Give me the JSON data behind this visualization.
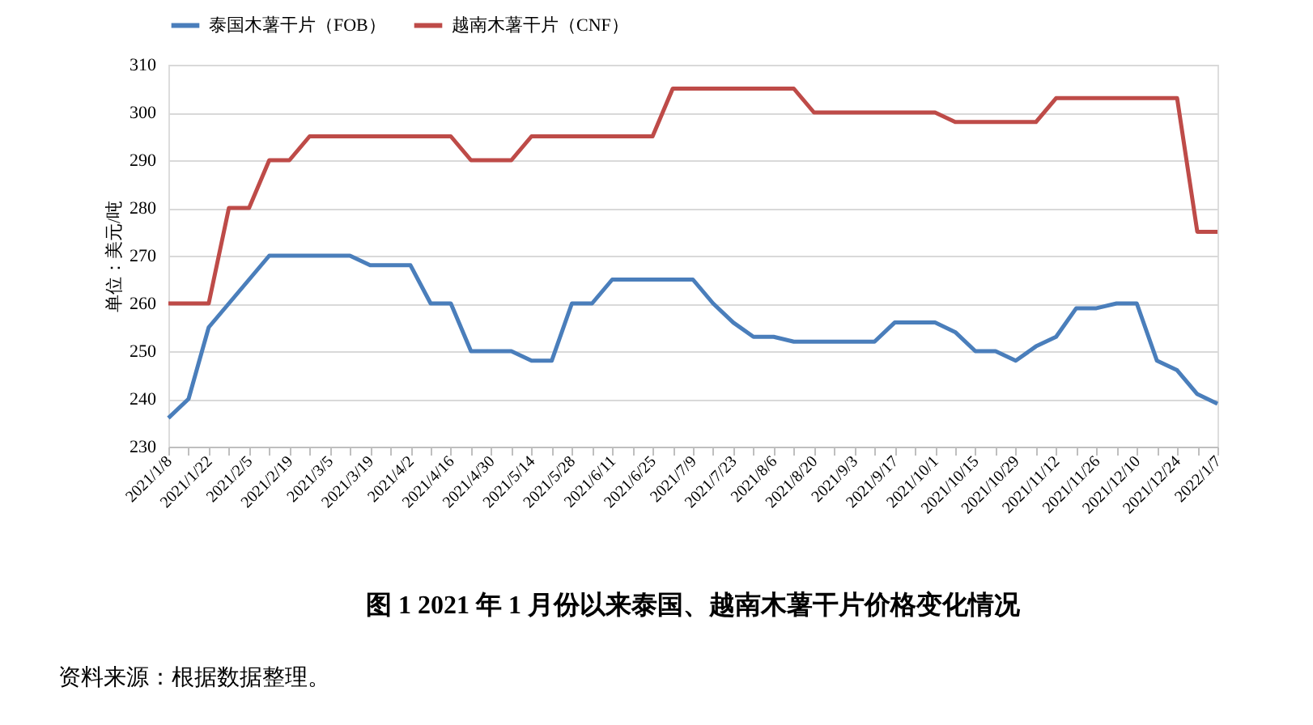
{
  "chart_data": {
    "type": "line",
    "title": "图 1   2021 年 1 月份以来泰国、越南木薯干片价格变化情况",
    "ylabel": "单位：美元/吨",
    "annotations": [
      "资料来源：根据数据整理。"
    ],
    "categories": [
      "2021/1/8",
      null,
      "2021/1/22",
      null,
      "2021/2/5",
      null,
      "2021/2/19",
      null,
      "2021/3/5",
      null,
      "2021/3/19",
      null,
      "2021/4/2",
      null,
      "2021/4/16",
      null,
      "2021/4/30",
      null,
      "2021/5/14",
      null,
      "2021/5/28",
      null,
      "2021/6/11",
      null,
      "2021/6/25",
      null,
      "2021/7/9",
      null,
      "2021/7/23",
      null,
      "2021/8/6",
      null,
      "2021/8/20",
      null,
      "2021/9/3",
      null,
      "2021/9/17",
      null,
      "2021/10/1",
      null,
      "2021/10/15",
      null,
      "2021/10/29",
      null,
      "2021/11/12",
      null,
      "2021/11/26",
      null,
      "2021/12/10",
      null,
      "2021/12/24",
      null,
      "2022/1/7"
    ],
    "series": [
      {
        "name": "泰国木薯干片（FOB）",
        "color": "#4a7ebb",
        "values": [
          236,
          240,
          255,
          260,
          265,
          270,
          270,
          270,
          270,
          270,
          268,
          268,
          268,
          260,
          260,
          250,
          250,
          250,
          248,
          248,
          260,
          260,
          265,
          265,
          265,
          265,
          265,
          260,
          256,
          253,
          253,
          252,
          252,
          252,
          252,
          252,
          256,
          256,
          256,
          254,
          250,
          250,
          248,
          251,
          253,
          259,
          259,
          260,
          260,
          248,
          246,
          241,
          239
        ]
      },
      {
        "name": "越南木薯干片（CNF）",
        "color": "#be4b48",
        "values": [
          260,
          260,
          260,
          280,
          280,
          290,
          290,
          295,
          295,
          295,
          295,
          295,
          295,
          295,
          295,
          290,
          290,
          290,
          295,
          295,
          295,
          295,
          295,
          295,
          295,
          305,
          305,
          305,
          305,
          305,
          305,
          305,
          300,
          300,
          300,
          300,
          300,
          300,
          300,
          298,
          298,
          298,
          298,
          298,
          303,
          303,
          303,
          303,
          303,
          303,
          303,
          275,
          275
        ]
      }
    ],
    "ylim": [
      230,
      310
    ],
    "yticks": [
      230,
      240,
      250,
      260,
      270,
      280,
      290,
      300,
      310
    ],
    "grid": "y",
    "legend": "top",
    "marker": "none",
    "line_style": "solid"
  }
}
